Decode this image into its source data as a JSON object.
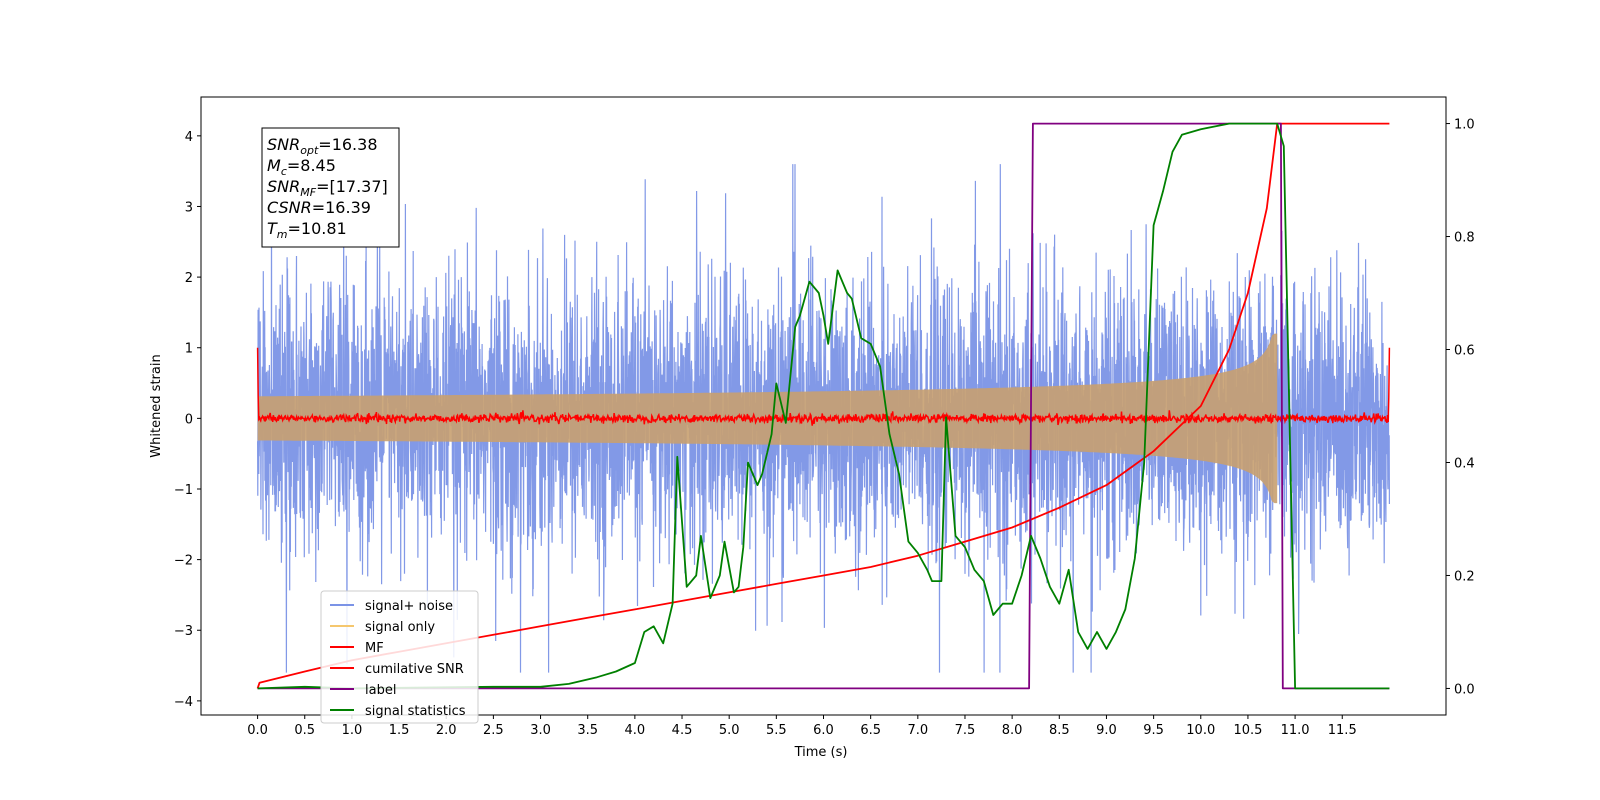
{
  "chart_data": {
    "type": "line",
    "xlabel": "Time (s)",
    "ylabel": "Whitened strain",
    "xlim": [
      -0.6,
      12.6
    ],
    "ylim": [
      -4.2,
      4.55
    ],
    "y2lim": [
      -0.047,
      1.047
    ],
    "xticks": [
      "0.0",
      "0.5",
      "1.0",
      "1.5",
      "2.0",
      "2.5",
      "3.0",
      "3.5",
      "4.0",
      "4.5",
      "5.0",
      "5.5",
      "6.0",
      "6.5",
      "7.0",
      "7.5",
      "8.0",
      "8.5",
      "9.0",
      "9.5",
      "10.0",
      "10.5",
      "11.0",
      "11.5"
    ],
    "yticks": [
      "4",
      "3",
      "2",
      "1",
      "0",
      "−1",
      "−2",
      "−3",
      "−4"
    ],
    "y2ticks": [
      "1.0",
      "0.8",
      "0.6",
      "0.4",
      "0.2",
      "0.0"
    ],
    "annotation": {
      "lines": [
        {
          "sym": "SNR",
          "sub": "opt",
          "val": "=16.38"
        },
        {
          "sym": "M",
          "sub": "c",
          "val": "=8.45"
        },
        {
          "sym": "SNR",
          "sub": "MF",
          "val": "=[17.37]"
        },
        {
          "sym": "CSNR",
          "sub": "",
          "val": "=16.39"
        },
        {
          "sym": "T",
          "sub": "m",
          "val": "=10.81"
        }
      ]
    },
    "legend": {
      "position": "lower-left",
      "entries": [
        {
          "label": "signal+ noise",
          "color": "#7b93e6"
        },
        {
          "label": "signal only",
          "color": "#f5c76e"
        },
        {
          "label": "MF",
          "color": "#ff0000"
        },
        {
          "label": "cumilative SNR",
          "color": "#ff0000"
        },
        {
          "label": "label",
          "color": "#800080"
        },
        {
          "label": "signal statistics",
          "color": "#008000"
        }
      ]
    },
    "series": [
      {
        "name": "signal+ noise",
        "axis": "left",
        "color": "#7b93e6",
        "description": "whitened noise with signal, amplitude roughly ±2.5, spikes up to about ±3.5",
        "x_range": [
          0,
          12
        ]
      },
      {
        "name": "signal only",
        "axis": "left",
        "color": "#c8a070",
        "chirp": {
          "start": 0,
          "end": 10.81,
          "amplitude_end": 1.2
        }
      },
      {
        "name": "MF",
        "axis": "left",
        "color": "#ff0000",
        "description": "matched filter output near 0 with edge spikes to 1.0",
        "x_range": [
          0,
          12
        ]
      },
      {
        "name": "cumilative SNR",
        "axis": "right",
        "color": "#ff0000",
        "points": [
          [
            0.0,
            0.0
          ],
          [
            0.02,
            0.01
          ],
          [
            0.5,
            0.03
          ],
          [
            1.0,
            0.05
          ],
          [
            1.5,
            0.065
          ],
          [
            2.0,
            0.08
          ],
          [
            2.5,
            0.095
          ],
          [
            3.0,
            0.11
          ],
          [
            3.5,
            0.125
          ],
          [
            4.0,
            0.14
          ],
          [
            4.5,
            0.155
          ],
          [
            5.0,
            0.17
          ],
          [
            5.5,
            0.185
          ],
          [
            6.0,
            0.2
          ],
          [
            6.5,
            0.215
          ],
          [
            7.0,
            0.235
          ],
          [
            7.5,
            0.26
          ],
          [
            8.0,
            0.285
          ],
          [
            8.5,
            0.32
          ],
          [
            9.0,
            0.36
          ],
          [
            9.5,
            0.42
          ],
          [
            10.0,
            0.5
          ],
          [
            10.3,
            0.6
          ],
          [
            10.5,
            0.7
          ],
          [
            10.7,
            0.85
          ],
          [
            10.81,
            1.0
          ],
          [
            12.0,
            1.0
          ]
        ]
      },
      {
        "name": "label",
        "axis": "right",
        "color": "#800080",
        "points": [
          [
            0.0,
            0.0
          ],
          [
            8.18,
            0.0
          ],
          [
            8.22,
            1.0
          ],
          [
            10.85,
            1.0
          ],
          [
            10.87,
            0.0
          ],
          [
            12.0,
            0.0
          ]
        ]
      },
      {
        "name": "signal statistics",
        "axis": "right",
        "color": "#008000",
        "points": [
          [
            0.0,
            0.0
          ],
          [
            0.5,
            0.003
          ],
          [
            1.0,
            0.0
          ],
          [
            2.0,
            0.002
          ],
          [
            2.5,
            0.003
          ],
          [
            3.0,
            0.003
          ],
          [
            3.3,
            0.008
          ],
          [
            3.6,
            0.02
          ],
          [
            3.8,
            0.03
          ],
          [
            4.0,
            0.045
          ],
          [
            4.1,
            0.1
          ],
          [
            4.2,
            0.11
          ],
          [
            4.3,
            0.08
          ],
          [
            4.4,
            0.15
          ],
          [
            4.45,
            0.41
          ],
          [
            4.55,
            0.18
          ],
          [
            4.65,
            0.2
          ],
          [
            4.7,
            0.27
          ],
          [
            4.8,
            0.16
          ],
          [
            4.9,
            0.2
          ],
          [
            4.95,
            0.26
          ],
          [
            5.05,
            0.17
          ],
          [
            5.1,
            0.18
          ],
          [
            5.15,
            0.25
          ],
          [
            5.2,
            0.4
          ],
          [
            5.3,
            0.36
          ],
          [
            5.35,
            0.38
          ],
          [
            5.45,
            0.45
          ],
          [
            5.5,
            0.54
          ],
          [
            5.6,
            0.47
          ],
          [
            5.7,
            0.64
          ],
          [
            5.75,
            0.66
          ],
          [
            5.85,
            0.72
          ],
          [
            5.95,
            0.7
          ],
          [
            6.0,
            0.66
          ],
          [
            6.05,
            0.61
          ],
          [
            6.15,
            0.74
          ],
          [
            6.25,
            0.7
          ],
          [
            6.3,
            0.69
          ],
          [
            6.4,
            0.62
          ],
          [
            6.5,
            0.61
          ],
          [
            6.6,
            0.57
          ],
          [
            6.7,
            0.45
          ],
          [
            6.8,
            0.38
          ],
          [
            6.9,
            0.26
          ],
          [
            7.0,
            0.24
          ],
          [
            7.1,
            0.21
          ],
          [
            7.15,
            0.19
          ],
          [
            7.25,
            0.19
          ],
          [
            7.3,
            0.48
          ],
          [
            7.4,
            0.27
          ],
          [
            7.5,
            0.25
          ],
          [
            7.6,
            0.21
          ],
          [
            7.7,
            0.19
          ],
          [
            7.8,
            0.13
          ],
          [
            7.9,
            0.15
          ],
          [
            8.0,
            0.15
          ],
          [
            8.1,
            0.2
          ],
          [
            8.2,
            0.27
          ],
          [
            8.3,
            0.23
          ],
          [
            8.4,
            0.18
          ],
          [
            8.5,
            0.15
          ],
          [
            8.6,
            0.21
          ],
          [
            8.7,
            0.1
          ],
          [
            8.8,
            0.07
          ],
          [
            8.9,
            0.1
          ],
          [
            9.0,
            0.07
          ],
          [
            9.1,
            0.1
          ],
          [
            9.2,
            0.14
          ],
          [
            9.3,
            0.23
          ],
          [
            9.4,
            0.4
          ],
          [
            9.5,
            0.82
          ],
          [
            9.6,
            0.88
          ],
          [
            9.7,
            0.95
          ],
          [
            9.8,
            0.98
          ],
          [
            10.0,
            0.99
          ],
          [
            10.3,
            1.0
          ],
          [
            10.81,
            1.0
          ],
          [
            10.88,
            0.96
          ],
          [
            10.95,
            0.4
          ],
          [
            11.0,
            0.0
          ],
          [
            12.0,
            0.0
          ]
        ]
      }
    ]
  }
}
